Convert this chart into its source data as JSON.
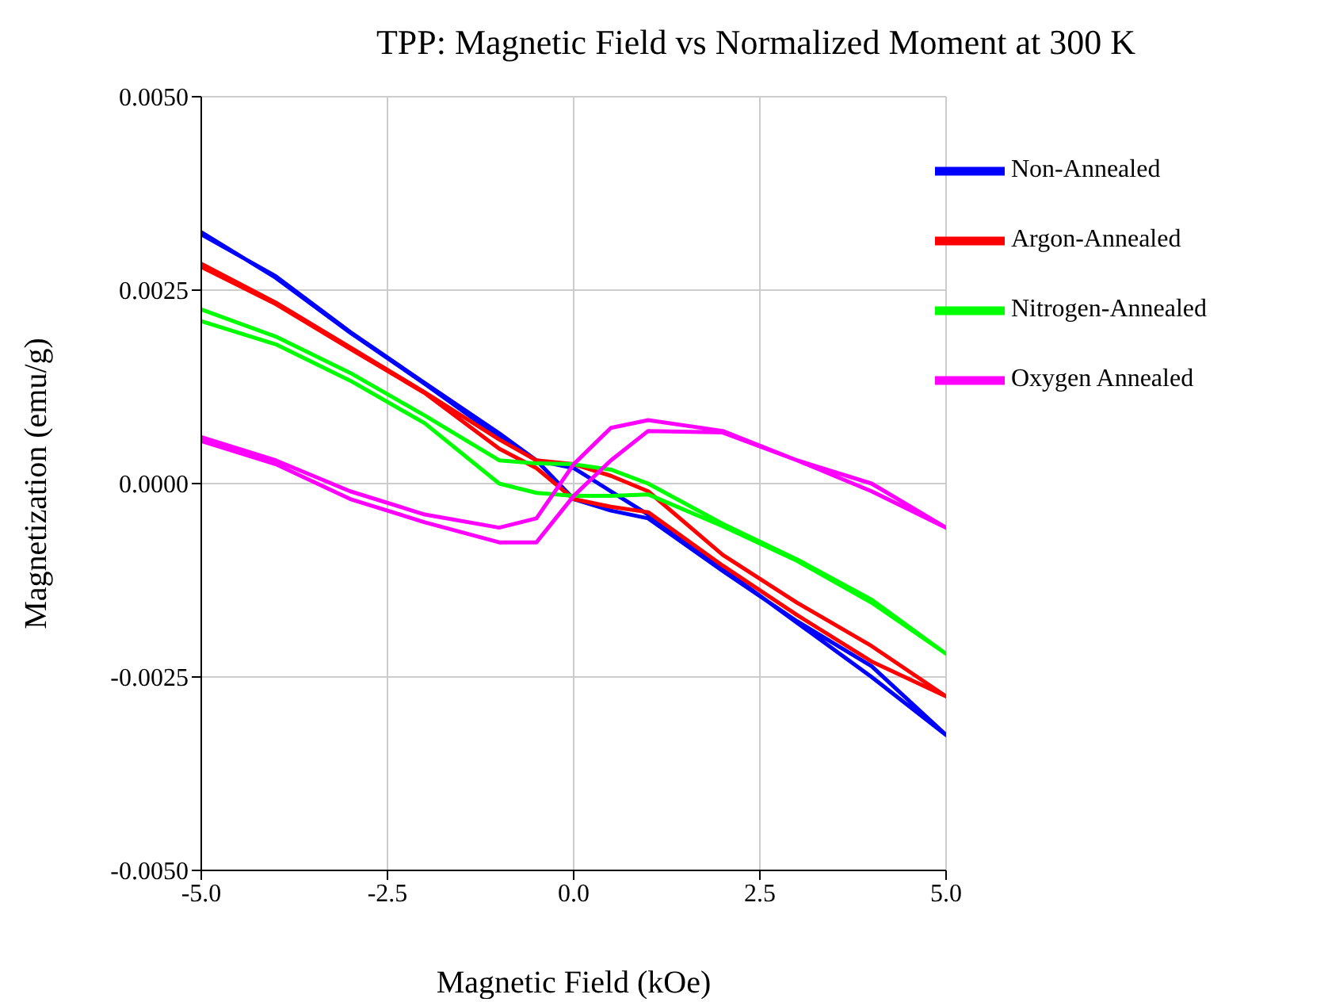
{
  "chart_data": {
    "type": "line",
    "title": "TPP: Magnetic Field vs Normalized Moment at 300 K",
    "xlabel": "Magnetic Field (kOe)",
    "ylabel": "Magnetization (emu/g)",
    "xlim": [
      -5,
      5
    ],
    "xticks": [
      {
        "value": -5,
        "label": "-5.0"
      },
      {
        "value": -2.5,
        "label": "-2.5"
      },
      {
        "value": 0,
        "label": "0.0"
      },
      {
        "value": 2.5,
        "label": "2.5"
      },
      {
        "value": 5,
        "label": "5.0"
      }
    ],
    "ylim": [
      -0.005,
      0.005
    ],
    "yticks": [
      {
        "value": -0.005,
        "label": "-0.0050"
      },
      {
        "value": -0.0025,
        "label": "-0.0025"
      },
      {
        "value": 0,
        "label": "0.0000"
      },
      {
        "value": 0.0025,
        "label": "0.0025"
      },
      {
        "value": 0.005,
        "label": "0.0050"
      }
    ],
    "grid": true,
    "legend": "top right",
    "marker": "none",
    "line_style": "solid",
    "series": [
      {
        "name": "Non-Annealed",
        "color": "#0000ff",
        "x": [
          -5,
          -4,
          -3,
          -2,
          -1,
          -0.5,
          0,
          0.5,
          1,
          2,
          3,
          4,
          5,
          4,
          3,
          2,
          1,
          0.5,
          0,
          -0.5,
          -1,
          -2,
          -3,
          -4,
          -5
        ],
        "values": [
          0.00325,
          0.00266,
          0.00195,
          0.00129,
          0.0006,
          0.0003,
          -0.0002,
          -0.00035,
          -0.00045,
          -0.00113,
          -0.00178,
          -0.00236,
          -0.00325,
          -0.0025,
          -0.0018,
          -0.0011,
          -0.0004,
          -0.0001,
          0.0002,
          0.0003,
          0.00065,
          0.0013,
          0.00196,
          0.00268,
          0.00322
        ]
      },
      {
        "name": "Argon-Annealed",
        "color": "#ff0000",
        "x": [
          -5,
          -4,
          -3,
          -2,
          -1,
          -0.5,
          0,
          0.5,
          1,
          2,
          3,
          4,
          5,
          4,
          3,
          2,
          1,
          0.5,
          0,
          -0.5,
          -1,
          -2,
          -3,
          -4,
          -5
        ],
        "values": [
          0.0028,
          0.00232,
          0.00174,
          0.00117,
          0.00045,
          0.0002,
          -0.0002,
          -0.0003,
          -0.00037,
          -0.00106,
          -0.0017,
          -0.0023,
          -0.00275,
          -0.0021,
          -0.00154,
          -0.00092,
          -0.0001,
          0.0001,
          0.00025,
          0.0003,
          0.00057,
          0.00118,
          0.00176,
          0.00234,
          0.00284
        ]
      },
      {
        "name": "Nitrogen-Annealed",
        "color": "#00ff00",
        "x": [
          -5,
          -4,
          -3,
          -2,
          -1,
          -0.5,
          0,
          0.5,
          1,
          2,
          3,
          4,
          5,
          4,
          3,
          2,
          1,
          0.5,
          0,
          -0.5,
          -1,
          -2,
          -3,
          -4,
          -5
        ],
        "values": [
          0.0021,
          0.0018,
          0.00133,
          0.00078,
          0,
          -0.00012,
          -0.00016,
          -0.00016,
          -0.00014,
          -0.00055,
          -0.001,
          -0.00154,
          -0.0022,
          -0.0015,
          -0.00098,
          -0.00052,
          0,
          0.00018,
          0.00025,
          0.00026,
          0.0003,
          0.00088,
          0.00143,
          0.0019,
          0.00225
        ]
      },
      {
        "name": "Oxygen Annealed",
        "color": "#ff00ff",
        "x": [
          -5,
          -4,
          -3,
          -2,
          -1,
          -0.5,
          0,
          0.5,
          1,
          2,
          3,
          4,
          5,
          4,
          3,
          2,
          1,
          0.5,
          0,
          -0.5,
          -1,
          -2,
          -3,
          -4,
          -5
        ],
        "values": [
          0.00055,
          0.00025,
          -0.0002,
          -0.0005,
          -0.00076,
          -0.00076,
          -0.00016,
          0.0003,
          0.00068,
          0.00066,
          0.0003,
          -0.0001,
          -0.00057,
          0,
          0.0003,
          0.00068,
          0.00082,
          0.00072,
          0.00025,
          -0.00045,
          -0.00057,
          -0.0004,
          -0.0001,
          0.0003,
          0.0006
        ]
      }
    ]
  }
}
